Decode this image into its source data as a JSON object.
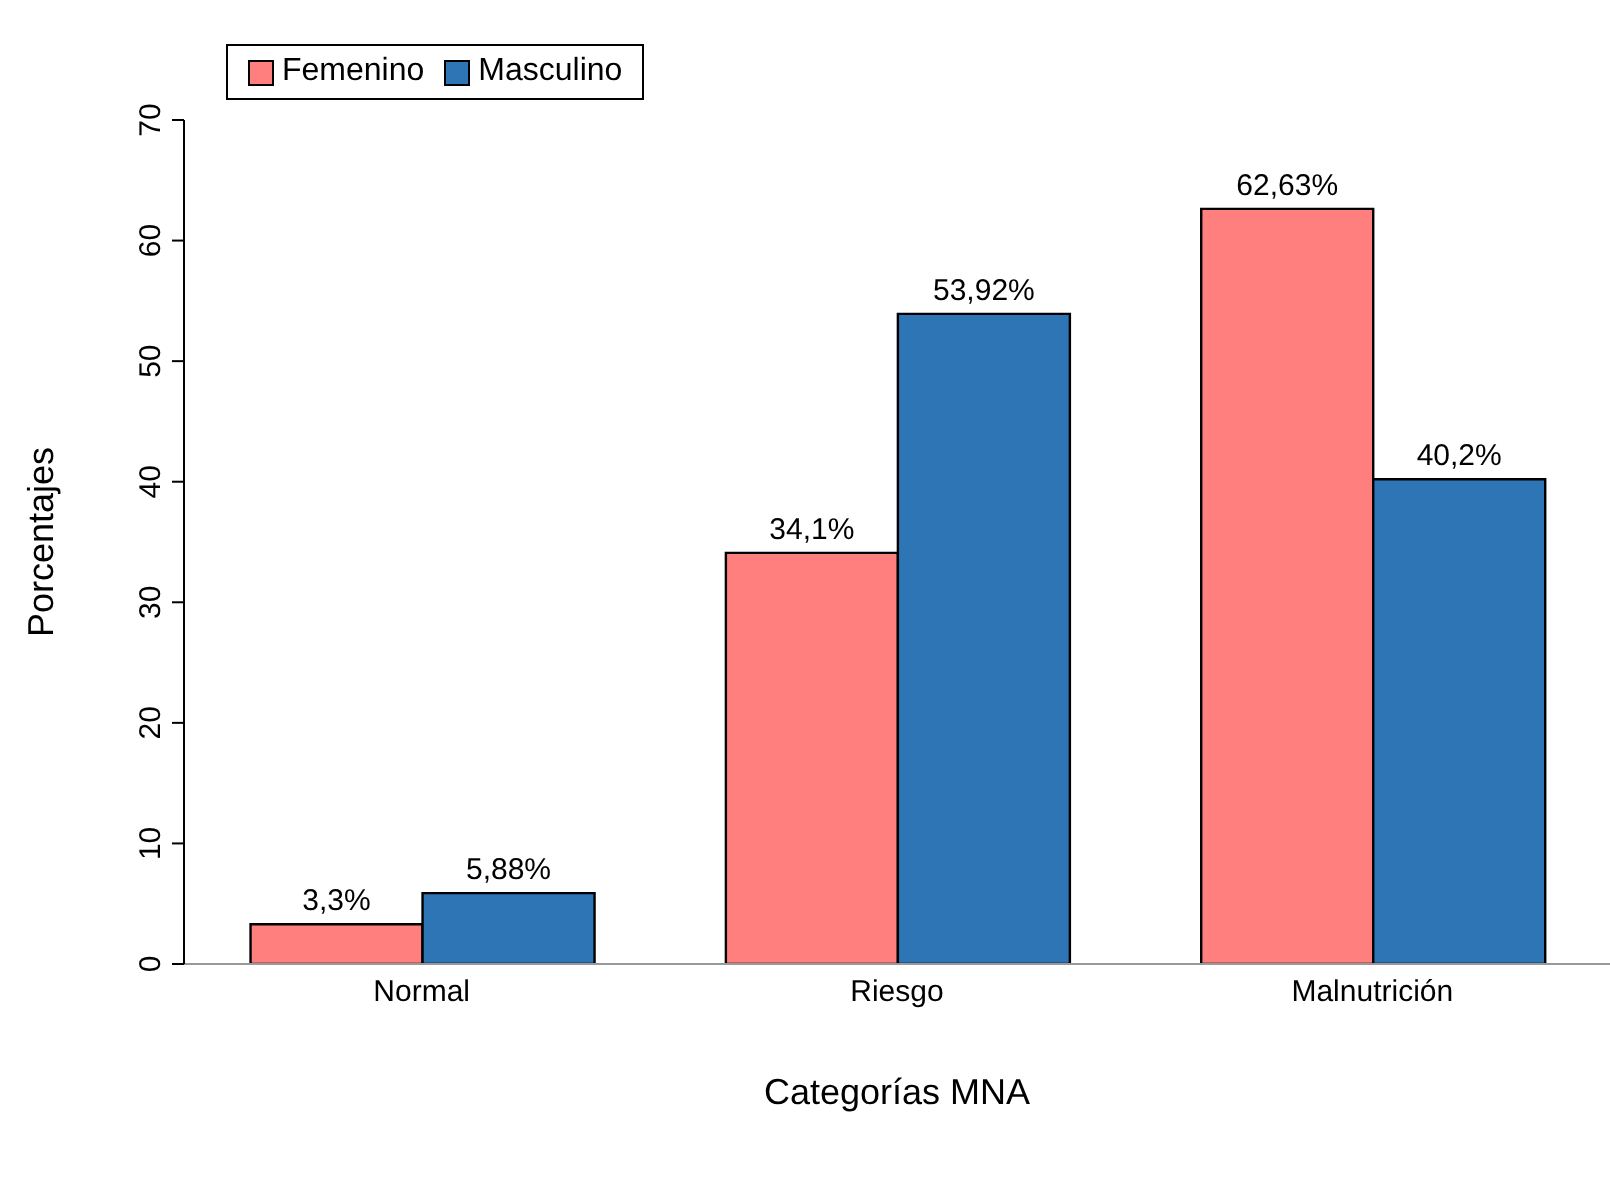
{
  "chart_data": {
    "type": "bar",
    "xlabel": "Categorías MNA",
    "ylabel": "Porcentajes",
    "categories": [
      "Normal",
      "Riesgo",
      "Malnutrición"
    ],
    "series": [
      {
        "name": "Femenino",
        "color": "#ff7f7f",
        "values": [
          3.3,
          34.1,
          62.63
        ],
        "value_labels": [
          "3,3%",
          "34,1%",
          "62,63%"
        ]
      },
      {
        "name": "Masculino",
        "color": "#2e75b6",
        "values": [
          5.88,
          53.92,
          40.2
        ],
        "value_labels": [
          "5,88%",
          "53,92%",
          "40,2%"
        ]
      }
    ],
    "ylim": [
      0,
      70
    ],
    "yticks": [
      0,
      10,
      20,
      30,
      40,
      50,
      60,
      70
    ],
    "grid": false,
    "legend": "top left"
  }
}
